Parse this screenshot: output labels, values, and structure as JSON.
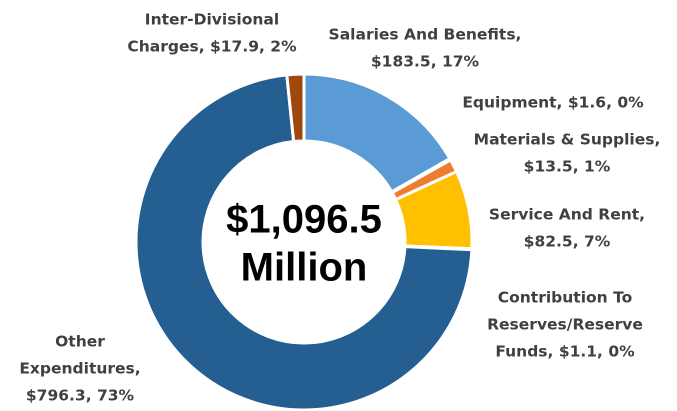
{
  "chart_data": {
    "type": "donut",
    "center_label": [
      "$1,096.5",
      "Million"
    ],
    "categories_labels": [
      [
        "Salaries And Benefits,",
        "$183.5, 17%"
      ],
      [
        "Equipment, $1.6, 0%"
      ],
      [
        "Materials & Supplies,",
        "$13.5, 1%"
      ],
      [
        "Service And Rent,",
        "$82.5, 7%"
      ],
      [
        "Contribution To",
        "Reserves/Reserve",
        "Funds, $1.1, 0%"
      ],
      [
        "Other",
        "Expenditures,",
        "$796.3, 73%"
      ],
      [
        "Inter-Divisional",
        "Charges, $17.9, 2%"
      ]
    ],
    "values": [
      183.5,
      1.6,
      13.5,
      82.5,
      1.1,
      796.3,
      17.9
    ],
    "colors": [
      "#5b9bd5",
      "#a5a5a5",
      "#ed7d31",
      "#ffc000",
      "#4472c4",
      "#255e91",
      "#9e480e"
    ]
  }
}
